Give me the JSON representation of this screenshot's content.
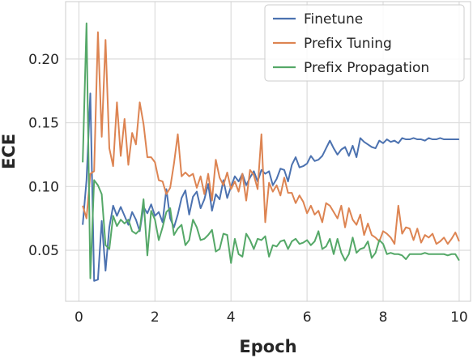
{
  "chart_data": {
    "type": "line",
    "title": "",
    "xlabel": "Epoch",
    "ylabel": "ECE",
    "xlim": [
      -0.35,
      10.3
    ],
    "ylim": [
      0.01,
      0.245
    ],
    "xticks": [
      0,
      2,
      4,
      6,
      8,
      10
    ],
    "xtick_labels": [
      "0",
      "2",
      "4",
      "6",
      "8",
      "10"
    ],
    "yticks": [
      0.05,
      0.1,
      0.15,
      0.2
    ],
    "ytick_labels": [
      "0.05",
      "0.10",
      "0.15",
      "0.20"
    ],
    "grid": true,
    "legend_position": "top-right",
    "x": [
      0.1,
      0.2,
      0.3,
      0.4,
      0.5,
      0.6,
      0.7,
      0.8,
      0.9,
      1.0,
      1.1,
      1.2,
      1.3,
      1.4,
      1.5,
      1.6,
      1.7,
      1.8,
      1.9,
      2.0,
      2.1,
      2.2,
      2.3,
      2.4,
      2.5,
      2.6,
      2.7,
      2.8,
      2.9,
      3.0,
      3.1,
      3.2,
      3.3,
      3.4,
      3.5,
      3.6,
      3.7,
      3.8,
      3.9,
      4.0,
      4.1,
      4.2,
      4.3,
      4.4,
      4.5,
      4.6,
      4.7,
      4.8,
      4.9,
      5.0,
      5.1,
      5.2,
      5.3,
      5.4,
      5.5,
      5.6,
      5.7,
      5.8,
      5.9,
      6.0,
      6.1,
      6.2,
      6.3,
      6.4,
      6.5,
      6.6,
      6.7,
      6.8,
      6.9,
      7.0,
      7.1,
      7.2,
      7.3,
      7.4,
      7.5,
      7.6,
      7.7,
      7.8,
      7.9,
      8.0,
      8.1,
      8.2,
      8.3,
      8.4,
      8.5,
      8.6,
      8.7,
      8.8,
      8.9,
      9.0,
      9.1,
      9.2,
      9.3,
      9.4,
      9.5,
      9.6,
      9.7,
      9.8,
      9.9,
      10.0
    ],
    "series": [
      {
        "name": "Finetune",
        "color": "#4c72b0",
        "values": [
          0.07,
          0.105,
          0.173,
          0.026,
          0.027,
          0.073,
          0.034,
          0.068,
          0.085,
          0.077,
          0.084,
          0.077,
          0.07,
          0.08,
          0.074,
          0.065,
          0.084,
          0.079,
          0.086,
          0.077,
          0.08,
          0.072,
          0.098,
          0.075,
          0.068,
          0.078,
          0.091,
          0.097,
          0.078,
          0.092,
          0.096,
          0.083,
          0.09,
          0.102,
          0.081,
          0.094,
          0.09,
          0.105,
          0.091,
          0.1,
          0.108,
          0.104,
          0.11,
          0.101,
          0.107,
          0.112,
          0.104,
          0.113,
          0.11,
          0.112,
          0.101,
          0.106,
          0.114,
          0.113,
          0.104,
          0.117,
          0.123,
          0.115,
          0.116,
          0.118,
          0.124,
          0.12,
          0.121,
          0.124,
          0.13,
          0.136,
          0.13,
          0.125,
          0.129,
          0.131,
          0.124,
          0.132,
          0.123,
          0.138,
          0.135,
          0.133,
          0.131,
          0.13,
          0.136,
          0.134,
          0.137,
          0.135,
          0.136,
          0.134,
          0.138,
          0.137,
          0.137,
          0.138,
          0.137,
          0.137,
          0.136,
          0.138,
          0.137,
          0.137,
          0.138,
          0.137,
          0.137,
          0.137,
          0.137,
          0.137
        ]
      },
      {
        "name": "Prefix Tuning",
        "color": "#dd8452",
        "values": [
          0.085,
          0.075,
          0.11,
          0.112,
          0.221,
          0.139,
          0.215,
          0.13,
          0.116,
          0.166,
          0.124,
          0.153,
          0.117,
          0.142,
          0.133,
          0.166,
          0.149,
          0.123,
          0.123,
          0.119,
          0.105,
          0.104,
          0.094,
          0.099,
          0.118,
          0.141,
          0.108,
          0.111,
          0.108,
          0.11,
          0.099,
          0.108,
          0.094,
          0.11,
          0.089,
          0.121,
          0.107,
          0.101,
          0.111,
          0.098,
          0.104,
          0.096,
          0.11,
          0.089,
          0.113,
          0.109,
          0.098,
          0.141,
          0.072,
          0.103,
          0.096,
          0.101,
          0.093,
          0.107,
          0.095,
          0.095,
          0.087,
          0.093,
          0.088,
          0.079,
          0.085,
          0.078,
          0.081,
          0.072,
          0.087,
          0.085,
          0.08,
          0.075,
          0.085,
          0.068,
          0.083,
          0.074,
          0.07,
          0.078,
          0.062,
          0.071,
          0.062,
          0.06,
          0.057,
          0.065,
          0.063,
          0.06,
          0.055,
          0.085,
          0.063,
          0.068,
          0.067,
          0.058,
          0.067,
          0.056,
          0.062,
          0.06,
          0.063,
          0.055,
          0.057,
          0.06,
          0.055,
          0.059,
          0.064,
          0.057
        ]
      },
      {
        "name": "Prefix Propagation",
        "color": "#55a868",
        "values": [
          0.119,
          0.228,
          0.028,
          0.105,
          0.101,
          0.094,
          0.054,
          0.051,
          0.077,
          0.069,
          0.074,
          0.071,
          0.074,
          0.065,
          0.063,
          0.066,
          0.09,
          0.046,
          0.081,
          0.074,
          0.058,
          0.068,
          0.08,
          0.083,
          0.062,
          0.067,
          0.07,
          0.054,
          0.058,
          0.074,
          0.068,
          0.058,
          0.059,
          0.062,
          0.066,
          0.049,
          0.051,
          0.063,
          0.062,
          0.04,
          0.059,
          0.047,
          0.045,
          0.063,
          0.058,
          0.051,
          0.059,
          0.058,
          0.061,
          0.045,
          0.054,
          0.053,
          0.057,
          0.058,
          0.051,
          0.057,
          0.059,
          0.055,
          0.056,
          0.058,
          0.054,
          0.057,
          0.065,
          0.051,
          0.053,
          0.059,
          0.047,
          0.059,
          0.048,
          0.042,
          0.047,
          0.06,
          0.048,
          0.051,
          0.052,
          0.057,
          0.044,
          0.048,
          0.058,
          0.055,
          0.047,
          0.048,
          0.047,
          0.047,
          0.046,
          0.043,
          0.047,
          0.047,
          0.047,
          0.047,
          0.048,
          0.047,
          0.047,
          0.047,
          0.047,
          0.047,
          0.046,
          0.047,
          0.047,
          0.042
        ]
      }
    ]
  }
}
